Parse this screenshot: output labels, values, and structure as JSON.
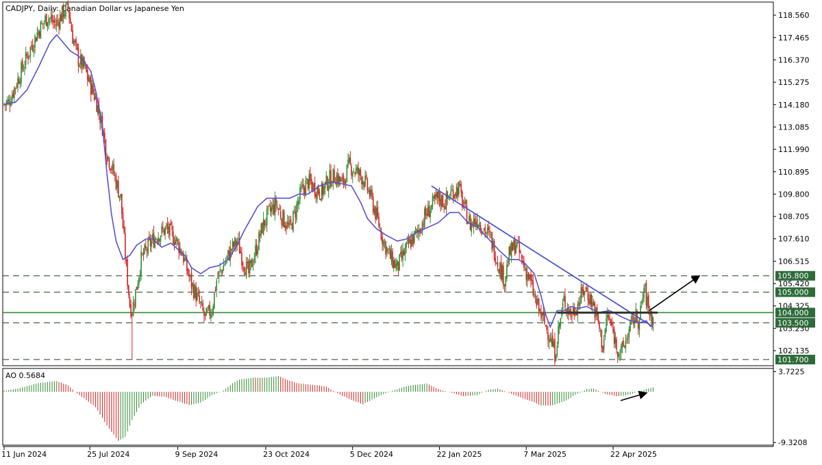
{
  "chart_data": {
    "type": "candlestick",
    "title": "CADJPY, Daily:  Canadian Dollar vs Japanese Yen",
    "colors": {
      "bull": "#2e8b2e",
      "bear": "#d62020",
      "ma": "#5a4fcf",
      "trendline": "#4a56d0",
      "support": "#2e8b2e",
      "level_box": "#2e6b3a",
      "grid": "#000000"
    },
    "price_axis": {
      "ylim": [
        101.4,
        119.2
      ],
      "ticks": [
        "118.560",
        "117.465",
        "116.370",
        "115.275",
        "114.180",
        "113.085",
        "111.990",
        "110.895",
        "109.800",
        "108.705",
        "107.610",
        "106.515",
        "105.420",
        "104.325",
        "103.230",
        "102.135"
      ]
    },
    "date_axis": {
      "labels": [
        "11 Jun 2024",
        "25 Jul 2024",
        "9 Sep 2024",
        "23 Oct 2024",
        "5 Dec 2024",
        "22 Jan 2025",
        "7 Mar 2025",
        "22 Apr 2025"
      ]
    },
    "levels": [
      {
        "value": 105.8,
        "label": "105.800",
        "style": "dashed"
      },
      {
        "value": 105.0,
        "label": "105.000",
        "style": "dashed"
      },
      {
        "value": 104.0,
        "label": "104.000",
        "style": "solid"
      },
      {
        "value": 103.5,
        "label": "103.500",
        "style": "dashed"
      },
      {
        "value": 101.7,
        "label": "101.700",
        "style": "dashed"
      }
    ],
    "price_path": [
      [
        0,
        114.2
      ],
      [
        4,
        114.3
      ],
      [
        12,
        115.4
      ],
      [
        22,
        116.8
      ],
      [
        30,
        117.8
      ],
      [
        38,
        118.5
      ],
      [
        45,
        118.1
      ],
      [
        52,
        118.7
      ],
      [
        56,
        118.9
      ],
      [
        60,
        117.5
      ],
      [
        65,
        116.4
      ],
      [
        70,
        116.0
      ],
      [
        75,
        115.2
      ],
      [
        80,
        114.5
      ],
      [
        86,
        113.1
      ],
      [
        90,
        111.8
      ],
      [
        96,
        110.8
      ],
      [
        102,
        109.6
      ],
      [
        106,
        106.8
      ],
      [
        110,
        104.4
      ],
      [
        112,
        104.1
      ],
      [
        116,
        105.3
      ],
      [
        120,
        106.6
      ],
      [
        128,
        107.4
      ],
      [
        134,
        107.8
      ],
      [
        142,
        108.1
      ],
      [
        150,
        107.6
      ],
      [
        156,
        106.9
      ],
      [
        160,
        106.1
      ],
      [
        164,
        105.4
      ],
      [
        170,
        104.6
      ],
      [
        176,
        103.7
      ],
      [
        182,
        104.2
      ],
      [
        186,
        105.6
      ],
      [
        192,
        106.3
      ],
      [
        198,
        107.0
      ],
      [
        204,
        107.5
      ],
      [
        210,
        106.4
      ],
      [
        214,
        105.9
      ],
      [
        220,
        107.0
      ],
      [
        226,
        108.2
      ],
      [
        232,
        108.9
      ],
      [
        238,
        109.3
      ],
      [
        244,
        108.6
      ],
      [
        250,
        108.1
      ],
      [
        254,
        108.8
      ],
      [
        260,
        109.9
      ],
      [
        266,
        110.4
      ],
      [
        272,
        110.1
      ],
      [
        278,
        109.9
      ],
      [
        284,
        110.5
      ],
      [
        290,
        110.7
      ],
      [
        296,
        110.3
      ],
      [
        302,
        111.2
      ],
      [
        308,
        110.9
      ],
      [
        314,
        110.6
      ],
      [
        320,
        109.8
      ],
      [
        326,
        108.7
      ],
      [
        332,
        107.5
      ],
      [
        338,
        106.7
      ],
      [
        344,
        106.2
      ],
      [
        350,
        106.9
      ],
      [
        356,
        107.5
      ],
      [
        362,
        107.9
      ],
      [
        368,
        108.7
      ],
      [
        374,
        109.2
      ],
      [
        380,
        109.6
      ],
      [
        386,
        109.4
      ],
      [
        392,
        109.9
      ],
      [
        398,
        110.1
      ],
      [
        402,
        109.2
      ],
      [
        408,
        108.3
      ],
      [
        414,
        108.6
      ],
      [
        420,
        108.1
      ],
      [
        426,
        107.6
      ],
      [
        432,
        106.5
      ],
      [
        438,
        105.6
      ],
      [
        442,
        106.8
      ],
      [
        448,
        107.4
      ],
      [
        454,
        106.4
      ],
      [
        460,
        105.6
      ],
      [
        466,
        104.4
      ],
      [
        472,
        103.6
      ],
      [
        478,
        102.8
      ],
      [
        482,
        102.0
      ],
      [
        486,
        103.4
      ],
      [
        490,
        104.6
      ],
      [
        496,
        103.9
      ],
      [
        502,
        104.4
      ],
      [
        508,
        105.2
      ],
      [
        512,
        104.8
      ],
      [
        516,
        104.3
      ],
      [
        520,
        103.5
      ],
      [
        524,
        102.3
      ],
      [
        528,
        103.9
      ],
      [
        532,
        103.2
      ],
      [
        536,
        102.4
      ],
      [
        540,
        102.0
      ],
      [
        544,
        102.6
      ],
      [
        548,
        103.3
      ],
      [
        552,
        103.8
      ],
      [
        556,
        103.6
      ],
      [
        560,
        105.2
      ],
      [
        564,
        104.2
      ],
      [
        568,
        103.6
      ]
    ],
    "ma_path": [
      [
        0,
        114.2
      ],
      [
        10,
        114.3
      ],
      [
        20,
        114.9
      ],
      [
        30,
        116.0
      ],
      [
        40,
        117.2
      ],
      [
        46,
        117.6
      ],
      [
        52,
        117.2
      ],
      [
        58,
        116.8
      ],
      [
        64,
        116.6
      ],
      [
        70,
        116.3
      ],
      [
        76,
        115.8
      ],
      [
        80,
        114.9
      ],
      [
        86,
        113.2
      ],
      [
        90,
        110.8
      ],
      [
        94,
        108.8
      ],
      [
        98,
        107.5
      ],
      [
        104,
        106.6
      ],
      [
        110,
        106.8
      ],
      [
        116,
        107.3
      ],
      [
        124,
        107.6
      ],
      [
        130,
        107.6
      ],
      [
        138,
        107.2
      ],
      [
        146,
        107.4
      ],
      [
        152,
        107.1
      ],
      [
        158,
        106.8
      ],
      [
        164,
        106.2
      ],
      [
        172,
        105.9
      ],
      [
        180,
        106.2
      ],
      [
        188,
        106.3
      ],
      [
        196,
        106.6
      ],
      [
        204,
        107.3
      ],
      [
        210,
        108.0
      ],
      [
        216,
        108.6
      ],
      [
        222,
        109.2
      ],
      [
        230,
        109.6
      ],
      [
        240,
        109.6
      ],
      [
        250,
        109.6
      ],
      [
        258,
        109.8
      ],
      [
        266,
        109.8
      ],
      [
        276,
        110.2
      ],
      [
        286,
        110.4
      ],
      [
        296,
        110.3
      ],
      [
        304,
        110.2
      ],
      [
        312,
        109.4
      ],
      [
        318,
        108.6
      ],
      [
        326,
        108.1
      ],
      [
        334,
        107.8
      ],
      [
        344,
        107.5
      ],
      [
        352,
        107.6
      ],
      [
        360,
        107.9
      ],
      [
        368,
        108.1
      ],
      [
        380,
        108.4
      ],
      [
        390,
        108.9
      ],
      [
        398,
        108.9
      ],
      [
        406,
        108.4
      ],
      [
        414,
        108.2
      ],
      [
        424,
        107.6
      ],
      [
        434,
        107.0
      ],
      [
        442,
        106.6
      ],
      [
        450,
        106.6
      ],
      [
        456,
        106.4
      ],
      [
        464,
        105.9
      ],
      [
        470,
        104.8
      ],
      [
        474,
        103.9
      ],
      [
        478,
        103.3
      ],
      [
        484,
        104.1
      ],
      [
        490,
        104.1
      ],
      [
        496,
        104.3
      ],
      [
        502,
        104.2
      ],
      [
        510,
        104.3
      ],
      [
        520,
        104.0
      ],
      [
        530,
        104.1
      ],
      [
        540,
        103.8
      ],
      [
        548,
        103.6
      ],
      [
        556,
        103.5
      ],
      [
        562,
        103.6
      ],
      [
        566,
        103.3
      ]
    ],
    "trendline": {
      "start": [
        374,
        110.2
      ],
      "end": [
        568,
        103.3
      ]
    },
    "support_segment": {
      "start": [
        484,
        104.0
      ],
      "end": [
        572,
        104.0
      ]
    },
    "ao": {
      "label": "AO 0.5684",
      "ylim": [
        -9.8,
        4.3
      ],
      "ticks": [
        "3.7225",
        "-9.3208"
      ],
      "segments": [
        [
          0,
          0.2
        ],
        [
          12,
          0.6
        ],
        [
          30,
          1.6
        ],
        [
          46,
          2.0
        ],
        [
          56,
          1.2
        ],
        [
          62,
          0.0
        ],
        [
          70,
          -1.2
        ],
        [
          80,
          -2.8
        ],
        [
          90,
          -6.2
        ],
        [
          100,
          -9.0
        ],
        [
          106,
          -8.3
        ],
        [
          112,
          -5.2
        ],
        [
          120,
          -2.2
        ],
        [
          130,
          -0.7
        ],
        [
          140,
          -0.9
        ],
        [
          150,
          -1.6
        ],
        [
          162,
          -2.4
        ],
        [
          172,
          -2.0
        ],
        [
          182,
          -0.6
        ],
        [
          192,
          0.2
        ],
        [
          200,
          1.6
        ],
        [
          206,
          2.3
        ],
        [
          218,
          2.6
        ],
        [
          230,
          2.6
        ],
        [
          240,
          2.9
        ],
        [
          248,
          2.2
        ],
        [
          256,
          1.6
        ],
        [
          270,
          1.3
        ],
        [
          282,
          1.0
        ],
        [
          292,
          -0.3
        ],
        [
          304,
          -1.5
        ],
        [
          314,
          -2.3
        ],
        [
          322,
          -1.4
        ],
        [
          330,
          -0.6
        ],
        [
          340,
          0.2
        ],
        [
          350,
          0.9
        ],
        [
          360,
          1.3
        ],
        [
          370,
          1.5
        ],
        [
          380,
          0.5
        ],
        [
          392,
          -0.2
        ],
        [
          402,
          -0.8
        ],
        [
          414,
          -0.6
        ],
        [
          424,
          0.4
        ],
        [
          432,
          0.6
        ],
        [
          440,
          0.0
        ],
        [
          450,
          -0.9
        ],
        [
          460,
          -1.6
        ],
        [
          470,
          -2.5
        ],
        [
          480,
          -2.5
        ],
        [
          492,
          -1.6
        ],
        [
          500,
          -0.5
        ],
        [
          510,
          0.5
        ],
        [
          516,
          0.6
        ],
        [
          526,
          -0.4
        ],
        [
          536,
          -0.8
        ],
        [
          544,
          -0.7
        ],
        [
          552,
          -0.2
        ],
        [
          560,
          0.4
        ],
        [
          568,
          0.8
        ]
      ]
    }
  }
}
